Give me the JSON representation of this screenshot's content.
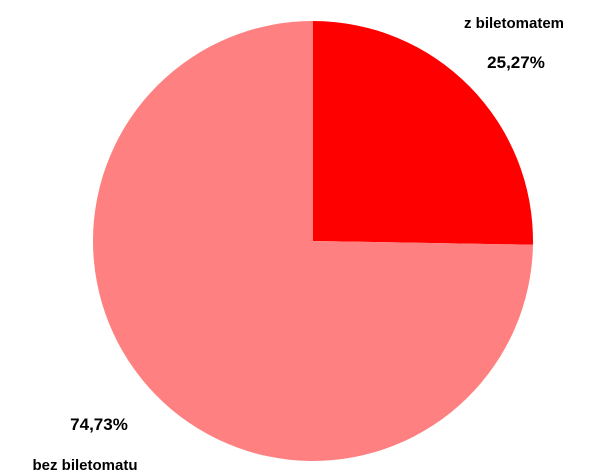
{
  "chart_data": {
    "type": "pie",
    "title": "",
    "slices": [
      {
        "label": "z biletomatem",
        "value": 25.27,
        "value_label": "25,27%",
        "color": "#ff0000"
      },
      {
        "label": "bez biletomatu",
        "value": 74.73,
        "value_label": "74,73%",
        "color": "#ff8080"
      }
    ],
    "legend": "none",
    "start_angle": "12 o'clock",
    "direction": "clockwise"
  }
}
